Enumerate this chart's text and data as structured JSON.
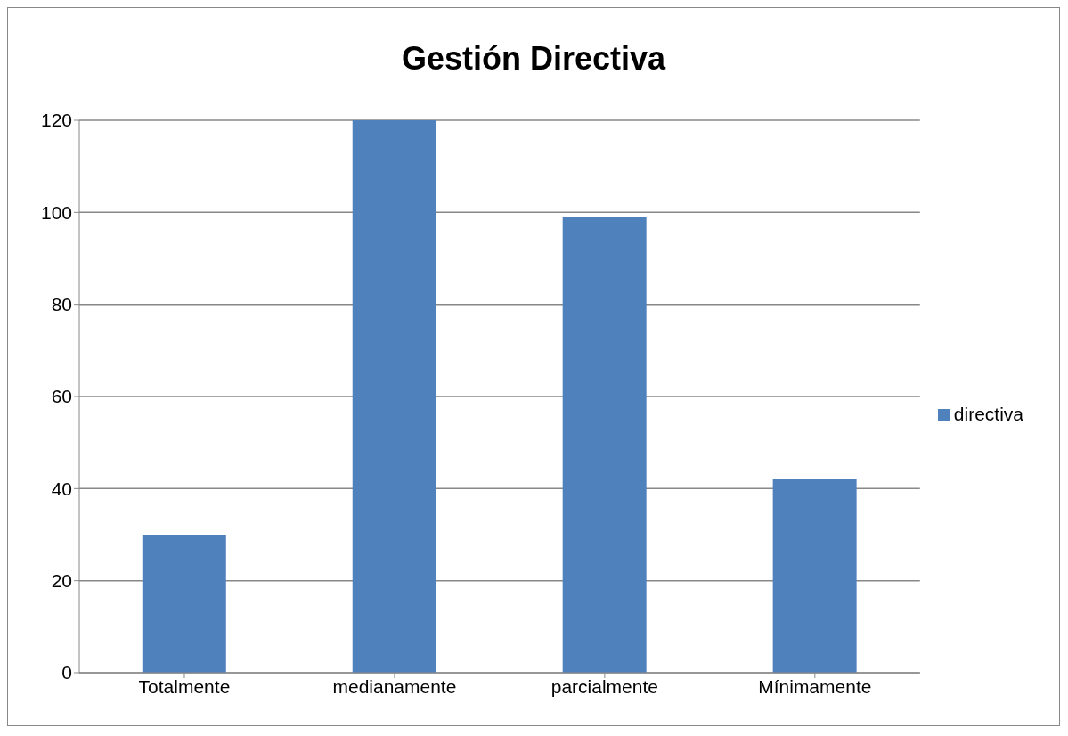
{
  "chart_data": {
    "type": "bar",
    "title": "Gestión Directiva",
    "categories": [
      "Totalmente",
      "medianamente",
      "parcialmente",
      "Mínimamente"
    ],
    "series": [
      {
        "name": "directiva",
        "color": "#4f81bd",
        "values": [
          30,
          120,
          99,
          42
        ]
      }
    ],
    "ylim": [
      0,
      120
    ],
    "yticks": [
      0,
      20,
      40,
      60,
      80,
      100,
      120
    ],
    "grid": "y",
    "legend": "right"
  }
}
